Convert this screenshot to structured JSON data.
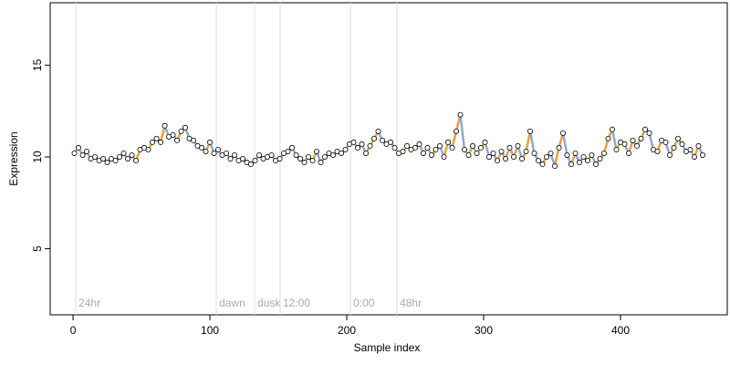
{
  "chart_data": {
    "type": "scatter",
    "xlabel": "Sample index",
    "ylabel": "Expression",
    "xlim": [
      -16.7,
      478
    ],
    "ylim": [
      1.4,
      18.4
    ],
    "xticks": [
      0,
      100,
      200,
      300,
      400
    ],
    "yticks": [
      5,
      10,
      15
    ],
    "point_fill": "#ffffff",
    "point_stroke": "#000000",
    "up_color": "#f0a030",
    "down_color": "#8fa8d8",
    "annotation_line_color": "#dddddd",
    "annotations": [
      {
        "x": 2,
        "label": "24hr"
      },
      {
        "x": 104.7,
        "label": "dawn"
      },
      {
        "x": 132.7,
        "label": "dusk"
      },
      {
        "x": 151.3,
        "label": "12:00"
      },
      {
        "x": 202.7,
        "label": "0:00"
      },
      {
        "x": 236.7,
        "label": "48hr"
      }
    ],
    "x": [
      1,
      4,
      7,
      10,
      13,
      16,
      19,
      22,
      25,
      28,
      31,
      34,
      37,
      40,
      43,
      46,
      49,
      52,
      55,
      58,
      61,
      64,
      67,
      70,
      73,
      76,
      79,
      82,
      85,
      88,
      91,
      94,
      97,
      100,
      103,
      106,
      109,
      112,
      115,
      118,
      121,
      124,
      127,
      130,
      133,
      136,
      139,
      142,
      145,
      148,
      151,
      154,
      157,
      160,
      163,
      166,
      169,
      172,
      175,
      178,
      181,
      184,
      187,
      190,
      193,
      196,
      199,
      202,
      205,
      208,
      211,
      214,
      217,
      220,
      223,
      226,
      229,
      232,
      235,
      238,
      241,
      244,
      247,
      250,
      253,
      256,
      259,
      262,
      265,
      268,
      271,
      274,
      277,
      280,
      283,
      286,
      289,
      292,
      295,
      298,
      301,
      304,
      307,
      310,
      313,
      316,
      319,
      322,
      325,
      328,
      331,
      334,
      337,
      340,
      343,
      346,
      349,
      352,
      355,
      358,
      361,
      364,
      367,
      370,
      373,
      376,
      379,
      382,
      385,
      388,
      391,
      394,
      397,
      400,
      403,
      406,
      409,
      412,
      415,
      418,
      421,
      424,
      427,
      430,
      433,
      436,
      439,
      442,
      445,
      448,
      451,
      454,
      457,
      460
    ],
    "values": [
      10.2,
      10.5,
      10.1,
      10.3,
      9.9,
      10.0,
      9.8,
      9.9,
      9.7,
      9.9,
      9.8,
      10.0,
      10.2,
      9.9,
      10.1,
      9.8,
      10.4,
      10.5,
      10.4,
      10.8,
      11.0,
      10.8,
      11.7,
      11.1,
      11.2,
      10.9,
      11.4,
      11.6,
      11.0,
      10.9,
      10.6,
      10.5,
      10.3,
      10.8,
      10.2,
      10.4,
      10.1,
      10.2,
      9.9,
      10.1,
      9.8,
      9.9,
      9.7,
      9.6,
      9.8,
      10.1,
      9.9,
      10.0,
      10.1,
      9.8,
      9.9,
      10.2,
      10.3,
      10.5,
      10.1,
      9.9,
      9.7,
      10.0,
      9.8,
      10.3,
      9.7,
      10.0,
      10.2,
      10.1,
      10.3,
      10.2,
      10.4,
      10.7,
      10.8,
      10.5,
      10.7,
      10.2,
      10.6,
      11.0,
      11.4,
      10.9,
      10.7,
      10.8,
      10.5,
      10.2,
      10.3,
      10.6,
      10.4,
      10.5,
      10.7,
      10.2,
      10.5,
      10.1,
      10.4,
      10.6,
      10.0,
      10.8,
      10.5,
      11.4,
      12.3,
      10.4,
      10.1,
      10.6,
      10.2,
      10.5,
      10.8,
      10.0,
      10.2,
      9.8,
      10.3,
      9.9,
      10.5,
      10.0,
      10.6,
      9.9,
      10.3,
      11.4,
      10.2,
      9.8,
      9.6,
      10.0,
      10.2,
      9.5,
      10.5,
      11.3,
      10.1,
      9.6,
      10.2,
      9.7,
      10.0,
      9.8,
      10.1,
      9.6,
      9.9,
      10.2,
      11.0,
      11.5,
      10.4,
      10.8,
      10.7,
      10.2,
      10.9,
      10.6,
      11.0,
      11.5,
      11.3,
      10.4,
      10.3,
      10.9,
      10.8,
      10.1,
      10.5,
      11.0,
      10.7,
      10.3,
      10.4,
      10.0,
      10.6,
      10.1
    ]
  }
}
